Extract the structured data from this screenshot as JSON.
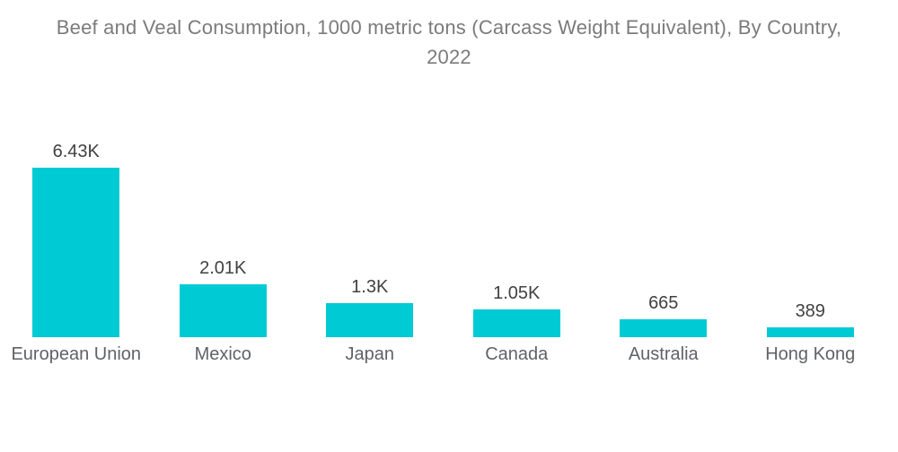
{
  "header": {
    "title_line1": "Beef and Veal Consumption, 1000 metric tons (Carcass Weight Equivalent), By Country,",
    "title_line2": "2022"
  },
  "chart_data": {
    "type": "bar",
    "title": "Beef and Veal Consumption, 1000 metric tons (Carcass Weight Equivalent), By Country, 2022",
    "categories": [
      "European Union",
      "Mexico",
      "Japan",
      "Canada",
      "Australia",
      "Hong Kong"
    ],
    "values": [
      6430,
      2010,
      1300,
      1050,
      665,
      389
    ],
    "value_labels": [
      "6.43K",
      "2.01K",
      "1.3K",
      "1.05K",
      "665",
      "389"
    ],
    "xlabel": "",
    "ylabel": "",
    "ylim": [
      0,
      6430
    ],
    "grid": false,
    "legend": "none",
    "orientation": "vertical",
    "bar_color": "#00cbd4"
  },
  "colors": {
    "background": "#ffffff",
    "bar": "#00cbd4",
    "title_text": "#7b7b7b",
    "value_text": "#414141",
    "category_text": "#5f6368"
  }
}
